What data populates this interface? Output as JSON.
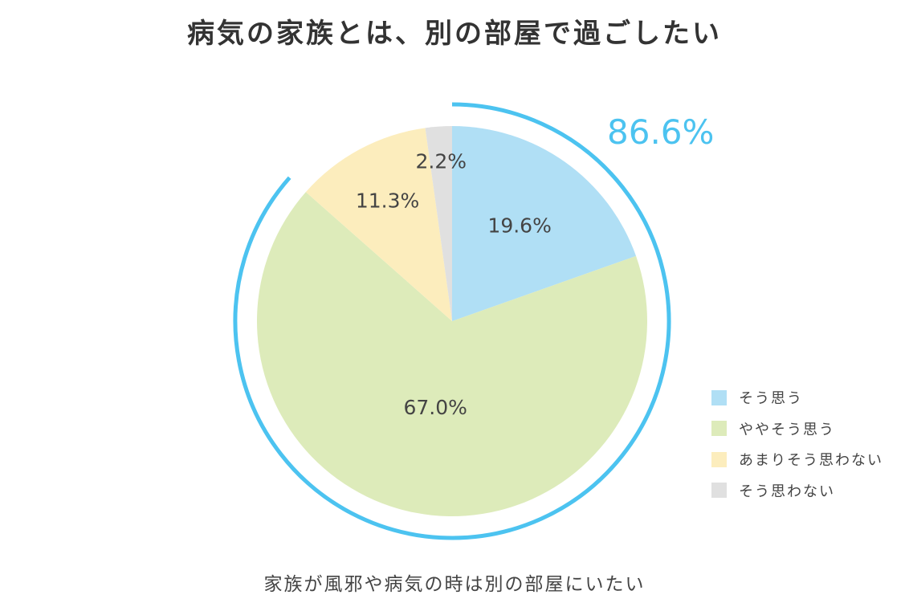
{
  "title": "病気の家族とは、別の部屋で過ごしたい",
  "caption": "家族が風邪や病気の時は別の部屋にいたい",
  "chart_data": {
    "type": "pie",
    "start_angle": "12 o'clock",
    "direction": "clockwise",
    "slices": [
      {
        "label": "そう思う",
        "value": 19.6,
        "display": "19.6%",
        "color": "#b0dff5"
      },
      {
        "label": "ややそう思う",
        "value": 67.0,
        "display": "67.0%",
        "color": "#ddebba"
      },
      {
        "label": "あまりそう思わない",
        "value": 11.3,
        "display": "11.3%",
        "color": "#fcedbd"
      },
      {
        "label": "そう思わない",
        "value": 2.2,
        "display": "2.2%",
        "color": "#e0e0e0"
      }
    ],
    "highlight": {
      "value": 86.6,
      "display": "86.6%",
      "covers": [
        "そう思う",
        "ややそう思う"
      ],
      "color": "#4cc3f0"
    },
    "legend_position": "right-bottom"
  }
}
